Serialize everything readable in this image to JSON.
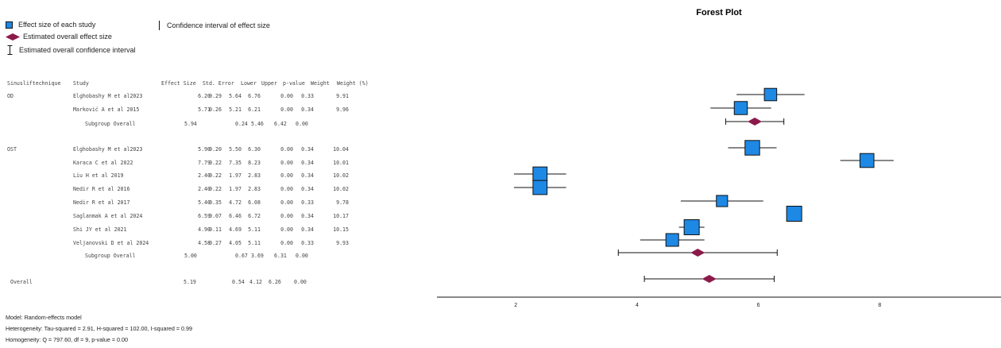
{
  "legend": {
    "study_effect": "Effect size of each study",
    "overall_effect": "Estimated overall effect size",
    "overall_ci": "Estimated overall confidence interval",
    "ci": "Confidence interval of effect size",
    "colors": {
      "study": "#1E88E5",
      "diamond": "#8B1A4A",
      "line": "#111111"
    }
  },
  "table": {
    "headers": [
      "Sinusliftechnique",
      "Study",
      "Effect Size",
      "Std. Error",
      "Lower",
      "Upper",
      "p-value",
      "Weight",
      "Weight (%)"
    ],
    "rows": [
      {
        "group": "OD",
        "study": "Elghobashy M et al2023",
        "es": "6.20",
        "se": "0.29",
        "lo": "5.64",
        "hi": "6.76",
        "p": "0.00",
        "w": "0.33",
        "wp": "9.91"
      },
      {
        "group": "",
        "study": "Marković A et al 2015",
        "es": "5.71",
        "se": "0.26",
        "lo": "5.21",
        "hi": "6.21",
        "p": "0.00",
        "w": "0.34",
        "wp": "9.96"
      },
      {
        "group": "",
        "study": "Subgroup Overall",
        "es": "5.94",
        "se": "0.24",
        "lo": "5.46",
        "hi": "6.42",
        "p": "0.00",
        "w": "",
        "wp": ""
      },
      {
        "group": "OST",
        "study": "Elghobashy M et al2023",
        "es": "5.90",
        "se": "0.20",
        "lo": "5.50",
        "hi": "6.30",
        "p": "0.00",
        "w": "0.34",
        "wp": "10.04"
      },
      {
        "group": "",
        "study": "Karaca C et al 2022",
        "es": "7.79",
        "se": "0.22",
        "lo": "7.35",
        "hi": "8.23",
        "p": "0.00",
        "w": "0.34",
        "wp": "10.01"
      },
      {
        "group": "",
        "study": "Liu H et al 2019",
        "es": "2.40",
        "se": "0.22",
        "lo": "1.97",
        "hi": "2.83",
        "p": "0.00",
        "w": "0.34",
        "wp": "10.02"
      },
      {
        "group": "",
        "study": "Nedir R et al 2016",
        "es": "2.40",
        "se": "0.22",
        "lo": "1.97",
        "hi": "2.83",
        "p": "0.00",
        "w": "0.34",
        "wp": "10.02"
      },
      {
        "group": "",
        "study": "Nedir R et al 2017",
        "es": "5.40",
        "se": "0.35",
        "lo": "4.72",
        "hi": "6.08",
        "p": "0.00",
        "w": "0.33",
        "wp": "9.78"
      },
      {
        "group": "",
        "study": "Saglanmak A et al 2024",
        "es": "6.59",
        "se": "0.07",
        "lo": "6.46",
        "hi": "6.72",
        "p": "0.00",
        "w": "0.34",
        "wp": "10.17"
      },
      {
        "group": "",
        "study": "Shi JY et al 2021",
        "es": "4.90",
        "se": "0.11",
        "lo": "4.69",
        "hi": "5.11",
        "p": "0.00",
        "w": "0.34",
        "wp": "10.15"
      },
      {
        "group": "",
        "study": "Veljanovski D et al 2024",
        "es": "4.58",
        "se": "0.27",
        "lo": "4.05",
        "hi": "5.11",
        "p": "0.00",
        "w": "0.33",
        "wp": "9.93"
      },
      {
        "group": "",
        "study": "Subgroup Overall",
        "es": "5.00",
        "se": "0.67",
        "lo": "3.69",
        "hi": "6.31",
        "p": "0.00",
        "w": "",
        "wp": ""
      },
      {
        "group": "Overall",
        "study": "",
        "es": "5.19",
        "se": "0.54",
        "lo": "4.12",
        "hi": "6.26",
        "p": "0.00",
        "w": "",
        "wp": ""
      }
    ]
  },
  "notes": {
    "model": "Model: Random-effects model",
    "heterogeneity": "Heterogeneity: Tau-squared = 2.91, H-squared = 102.00, I-squared = 0.99",
    "homogeneity": "Homogeneity: Q = 797.60, df = 9, p-value = 0.00"
  },
  "chart_data": {
    "type": "scatter",
    "subtype": "forest",
    "title": "Forest Plot",
    "xlim": [
      0.7,
      10.0
    ],
    "xticks": [
      "2",
      "4",
      "6",
      "8"
    ],
    "xtick_values": [
      2,
      4,
      6,
      8
    ],
    "rows": [
      {
        "label": "Elghobashy M et al2023",
        "es": 6.2,
        "lo": 5.64,
        "hi": 6.76,
        "weight_pct": 9.91,
        "kind": "study"
      },
      {
        "label": "Marković A et al 2015",
        "es": 5.71,
        "lo": 5.21,
        "hi": 6.21,
        "weight_pct": 9.96,
        "kind": "study"
      },
      {
        "label": "Subgroup Overall",
        "es": 5.94,
        "lo": 5.46,
        "hi": 6.42,
        "kind": "subgroup"
      },
      {
        "label": "Elghobashy M et al2023",
        "es": 5.9,
        "lo": 5.5,
        "hi": 6.3,
        "weight_pct": 10.04,
        "kind": "study"
      },
      {
        "label": "Karaca C et al 2022",
        "es": 7.79,
        "lo": 7.35,
        "hi": 8.23,
        "weight_pct": 10.01,
        "kind": "study"
      },
      {
        "label": "Liu H et al 2019",
        "es": 2.4,
        "lo": 1.97,
        "hi": 2.83,
        "weight_pct": 10.02,
        "kind": "study"
      },
      {
        "label": "Nedir R et al 2016",
        "es": 2.4,
        "lo": 1.97,
        "hi": 2.83,
        "weight_pct": 10.02,
        "kind": "study"
      },
      {
        "label": "Nedir R et al 2017",
        "es": 5.4,
        "lo": 4.72,
        "hi": 6.08,
        "weight_pct": 9.78,
        "kind": "study"
      },
      {
        "label": "Saglanmak A et al 2024",
        "es": 6.59,
        "lo": 6.46,
        "hi": 6.72,
        "weight_pct": 10.17,
        "kind": "study"
      },
      {
        "label": "Shi JY et al 2021",
        "es": 4.9,
        "lo": 4.69,
        "hi": 5.11,
        "weight_pct": 10.15,
        "kind": "study"
      },
      {
        "label": "Veljanovski D et al 2024",
        "es": 4.58,
        "lo": 4.05,
        "hi": 5.11,
        "weight_pct": 9.93,
        "kind": "study"
      },
      {
        "label": "Subgroup Overall",
        "es": 5.0,
        "lo": 3.69,
        "hi": 6.31,
        "kind": "subgroup"
      },
      {
        "label": "Overall",
        "es": 5.19,
        "lo": 4.12,
        "hi": 6.26,
        "kind": "overall"
      }
    ]
  }
}
